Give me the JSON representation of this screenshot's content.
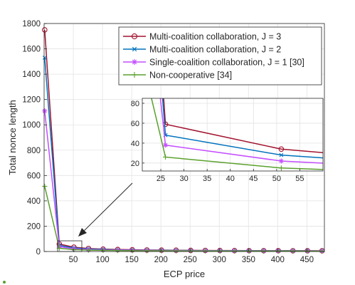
{
  "chart_data": {
    "type": "line",
    "xlabel": "ECP price",
    "ylabel": "Total nonce length",
    "xlim": [
      0,
      480
    ],
    "ylim": [
      0,
      1800
    ],
    "xticks": [
      50,
      100,
      150,
      200,
      250,
      300,
      350,
      400,
      450
    ],
    "yticks": [
      0,
      200,
      400,
      600,
      800,
      1000,
      1200,
      1400,
      1600,
      1800
    ],
    "grid": true,
    "legend_position": "top-right",
    "x": [
      1,
      26,
      51,
      76,
      101,
      126,
      151,
      176,
      201,
      226,
      251,
      276,
      301,
      326,
      351,
      376,
      401,
      426,
      451,
      476
    ],
    "series": [
      {
        "name": "Multi-coalition collaboration, J = 3",
        "color": "#a2142f",
        "marker": "circle",
        "values": [
          1750,
          59,
          34,
          24,
          19,
          16,
          14,
          12,
          11,
          10,
          9,
          8.5,
          8,
          7.5,
          7,
          6.8,
          6.5,
          6.2,
          6,
          5.8
        ]
      },
      {
        "name": "Multi-coalition collaboration, J = 2",
        "color": "#0072bd",
        "marker": "x",
        "values": [
          1530,
          48,
          28,
          20,
          16,
          13,
          11.5,
          10,
          9,
          8.3,
          7.7,
          7.2,
          6.8,
          6.4,
          6,
          5.8,
          5.5,
          5.3,
          5.1,
          4.9
        ]
      },
      {
        "name": "Single-coalition collaboration, J = 1 [30]",
        "color": "#c44dff",
        "marker": "asterisk",
        "values": [
          1110,
          38,
          22,
          16,
          13,
          11,
          9.5,
          8.5,
          7.7,
          7,
          6.5,
          6.1,
          5.7,
          5.4,
          5.1,
          4.9,
          4.7,
          4.5,
          4.3,
          4.2
        ]
      },
      {
        "name": "Non-cooperative [34]",
        "color": "#5aa02c",
        "marker": "plus",
        "values": [
          515,
          26,
          15,
          11,
          9,
          7.5,
          6.5,
          5.8,
          5.3,
          4.9,
          4.5,
          4.2,
          4,
          3.8,
          3.6,
          3.4,
          3.3,
          3.2,
          3.1,
          3
        ]
      }
    ],
    "inset": {
      "xlim": [
        21,
        60
      ],
      "ylim": [
        12,
        85
      ],
      "xticks": [
        25,
        30,
        35,
        40,
        45,
        50,
        55
      ],
      "yticks": [
        20,
        40,
        60,
        80
      ]
    }
  }
}
